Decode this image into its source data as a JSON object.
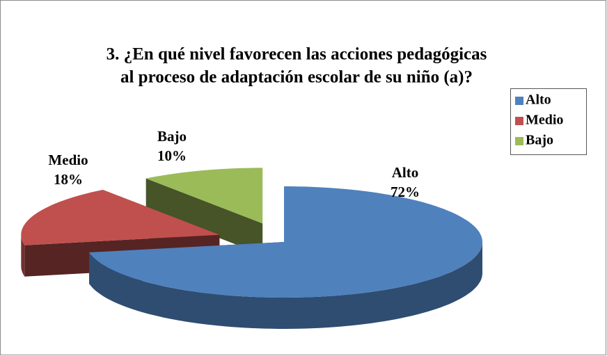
{
  "chart_data": {
    "type": "pie3d",
    "title": [
      "3. ¿En qué nivel favorecen las acciones pedagógicas",
      "al proceso de adaptación escolar de su niño (a)?"
    ],
    "categories": [
      "Alto",
      "Medio",
      "Bajo"
    ],
    "values": [
      72,
      18,
      10
    ],
    "value_labels": [
      "72%",
      "18%",
      "10%"
    ],
    "colors": [
      "#4f81bd",
      "#c0504d",
      "#9bbb59"
    ],
    "legend": "right"
  }
}
